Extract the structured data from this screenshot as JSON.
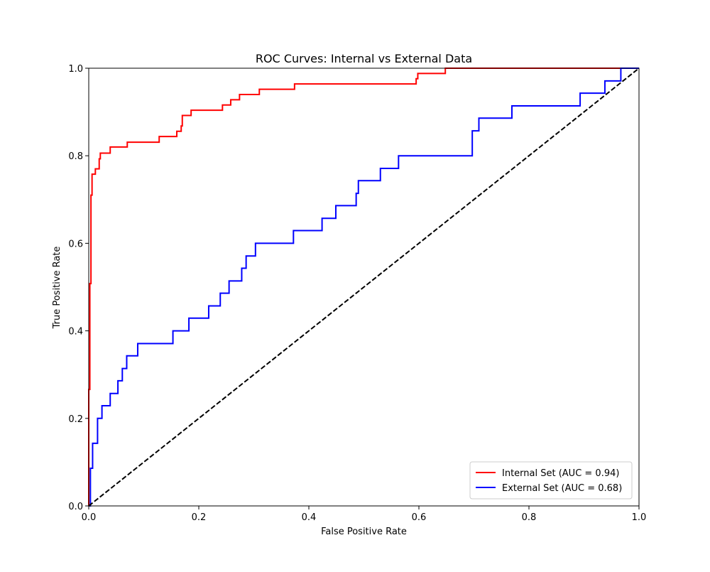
{
  "chart_data": {
    "type": "line",
    "title": "ROC Curves: Internal vs External Data",
    "xlabel": "False Positive Rate",
    "ylabel": "True Positive Rate",
    "xlim": [
      0,
      1
    ],
    "ylim": [
      0,
      1
    ],
    "xticks": [
      "0.0",
      "0.2",
      "0.4",
      "0.6",
      "0.8",
      "1.0"
    ],
    "yticks": [
      "0.0",
      "0.2",
      "0.4",
      "0.6",
      "0.8",
      "1.0"
    ],
    "grid": false,
    "legend_position": "lower-right",
    "series": [
      {
        "name": "Internal Set (AUC = 0.94)",
        "color": "#ff0000",
        "style": "solid",
        "x": [
          0,
          0,
          0.002,
          0.002,
          0.004,
          0.004,
          0.006,
          0.006,
          0.012,
          0.012,
          0.019,
          0.019,
          0.021,
          0.021,
          0.039,
          0.039,
          0.07,
          0.07,
          0.128,
          0.128,
          0.16,
          0.16,
          0.168,
          0.168,
          0.17,
          0.17,
          0.186,
          0.186,
          0.243,
          0.243,
          0.258,
          0.258,
          0.274,
          0.274,
          0.31,
          0.31,
          0.374,
          0.374,
          0.595,
          0.595,
          0.598,
          0.598,
          0.648,
          0.648,
          1.0
        ],
        "y": [
          0,
          0.266,
          0.266,
          0.508,
          0.508,
          0.71,
          0.71,
          0.758,
          0.758,
          0.77,
          0.77,
          0.793,
          0.793,
          0.806,
          0.806,
          0.82,
          0.82,
          0.831,
          0.831,
          0.844,
          0.844,
          0.856,
          0.856,
          0.868,
          0.868,
          0.892,
          0.892,
          0.904,
          0.904,
          0.916,
          0.916,
          0.928,
          0.928,
          0.94,
          0.94,
          0.952,
          0.952,
          0.964,
          0.964,
          0.976,
          0.976,
          0.988,
          0.988,
          1.0,
          1.0
        ]
      },
      {
        "name": "External Set (AUC = 0.68)",
        "color": "#0000ff",
        "style": "solid",
        "x": [
          0,
          0.003,
          0.003,
          0.007,
          0.007,
          0.016,
          0.016,
          0.024,
          0.024,
          0.039,
          0.039,
          0.053,
          0.053,
          0.061,
          0.061,
          0.069,
          0.069,
          0.089,
          0.089,
          0.153,
          0.153,
          0.182,
          0.182,
          0.218,
          0.218,
          0.239,
          0.239,
          0.255,
          0.255,
          0.278,
          0.278,
          0.286,
          0.286,
          0.303,
          0.303,
          0.372,
          0.372,
          0.424,
          0.424,
          0.449,
          0.449,
          0.486,
          0.486,
          0.49,
          0.49,
          0.53,
          0.53,
          0.563,
          0.563,
          0.697,
          0.697,
          0.709,
          0.709,
          0.769,
          0.769,
          0.893,
          0.893,
          0.938,
          0.938,
          0.967,
          0.967,
          1.0
        ],
        "y": [
          0,
          0,
          0.086,
          0.086,
          0.143,
          0.143,
          0.2,
          0.2,
          0.229,
          0.229,
          0.257,
          0.257,
          0.286,
          0.286,
          0.314,
          0.314,
          0.343,
          0.343,
          0.371,
          0.371,
          0.4,
          0.4,
          0.429,
          0.429,
          0.457,
          0.457,
          0.486,
          0.486,
          0.514,
          0.514,
          0.543,
          0.543,
          0.571,
          0.571,
          0.6,
          0.6,
          0.629,
          0.629,
          0.657,
          0.657,
          0.686,
          0.686,
          0.714,
          0.714,
          0.743,
          0.743,
          0.771,
          0.771,
          0.8,
          0.8,
          0.857,
          0.857,
          0.886,
          0.886,
          0.914,
          0.914,
          0.943,
          0.943,
          0.971,
          0.971,
          1.0,
          1.0
        ]
      },
      {
        "name": "",
        "color": "#000000",
        "style": "dashed",
        "x": [
          0,
          1
        ],
        "y": [
          0,
          1
        ]
      }
    ]
  }
}
